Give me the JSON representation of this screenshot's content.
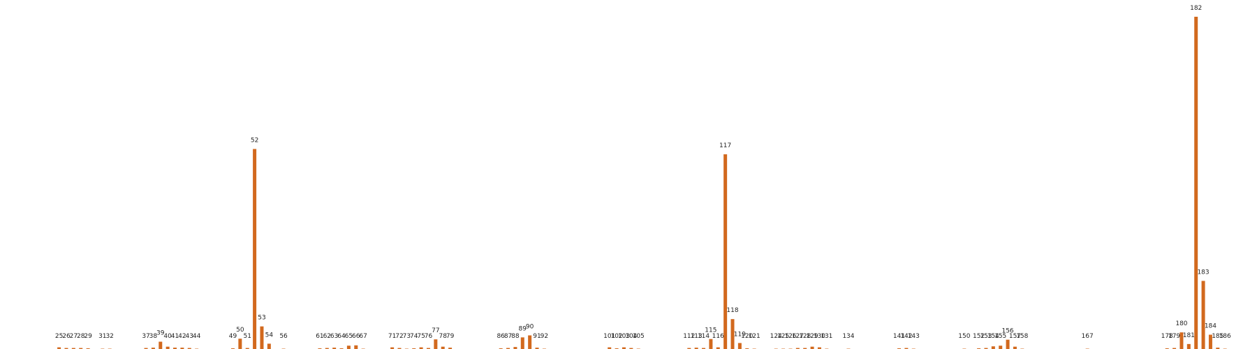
{
  "colors": {
    "bar": "#d2691e",
    "label": "#222222",
    "background": "#ffffff"
  },
  "chart_data": {
    "type": "bar",
    "title": "",
    "xlabel": "",
    "ylabel": "",
    "grid": false,
    "legend": "none",
    "xlim": [
      25,
      186
    ],
    "ylim": [
      0,
      100
    ],
    "x": [
      25,
      26,
      27,
      28,
      29,
      31,
      32,
      37,
      38,
      39,
      40,
      41,
      42,
      43,
      44,
      49,
      50,
      51,
      52,
      53,
      54,
      56,
      61,
      62,
      63,
      64,
      65,
      66,
      67,
      71,
      72,
      73,
      74,
      75,
      76,
      77,
      78,
      79,
      86,
      87,
      88,
      89,
      90,
      91,
      92,
      101,
      102,
      103,
      104,
      105,
      112,
      113,
      114,
      115,
      116,
      117,
      118,
      119,
      120,
      121,
      124,
      125,
      126,
      127,
      128,
      129,
      130,
      131,
      134,
      141,
      142,
      143,
      150,
      152,
      153,
      154,
      155,
      156,
      157,
      158,
      167,
      178,
      179,
      180,
      181,
      182,
      183,
      184,
      185,
      186
    ],
    "labels": [
      "25",
      "26",
      "27",
      "28",
      "29",
      "31",
      "32",
      "37",
      "38",
      "39",
      "40",
      "41",
      "42",
      "43",
      "44",
      "49",
      "50",
      "51",
      "52",
      "53",
      "54",
      "56",
      "61",
      "62",
      "63",
      "64",
      "65",
      "66",
      "67",
      "71",
      "72",
      "73",
      "74",
      "75",
      "76",
      "77",
      "78",
      "79",
      "86",
      "87",
      "88",
      "89",
      "90",
      "91",
      "92",
      "101",
      "102",
      "103",
      "104",
      "105",
      "112",
      "113",
      "114",
      "115",
      "116",
      "117",
      "118",
      "119",
      "120",
      "121",
      "124",
      "125",
      "126",
      "127",
      "128",
      "129",
      "130",
      "131",
      "134",
      "141",
      "142",
      "143",
      "150",
      "152",
      "153",
      "154",
      "155",
      "156",
      "157",
      "158",
      "167",
      "178",
      "179",
      "180",
      "181",
      "182",
      "183",
      "184",
      "185",
      "186"
    ],
    "values": [
      0.5,
      0.3,
      0.3,
      0.3,
      0.2,
      0.1,
      0.1,
      0.3,
      0.4,
      2.2,
      0.7,
      0.4,
      0.4,
      0.3,
      0.1,
      0.2,
      3.1,
      0.3,
      60.2,
      6.8,
      1.6,
      0.1,
      0.2,
      0.3,
      0.4,
      0.2,
      1.0,
      1.1,
      0.1,
      0.5,
      0.3,
      0.1,
      0.2,
      0.5,
      0.3,
      2.9,
      0.7,
      0.4,
      0.2,
      0.3,
      0.6,
      3.5,
      4.1,
      0.4,
      0.1,
      0.5,
      0.2,
      0.5,
      0.3,
      0.1,
      0.3,
      0.4,
      0.3,
      3.0,
      0.5,
      58.6,
      9.0,
      1.8,
      0.2,
      0.1,
      0.1,
      0.1,
      0.1,
      0.3,
      0.3,
      0.7,
      0.5,
      0.1,
      0.1,
      0.2,
      0.3,
      0.1,
      0.1,
      0.2,
      0.3,
      0.8,
      1.0,
      2.8,
      0.7,
      0.1,
      0.1,
      0.2,
      0.3,
      5.0,
      1.5,
      100,
      20.5,
      4.3,
      0.4,
      0.1
    ]
  }
}
